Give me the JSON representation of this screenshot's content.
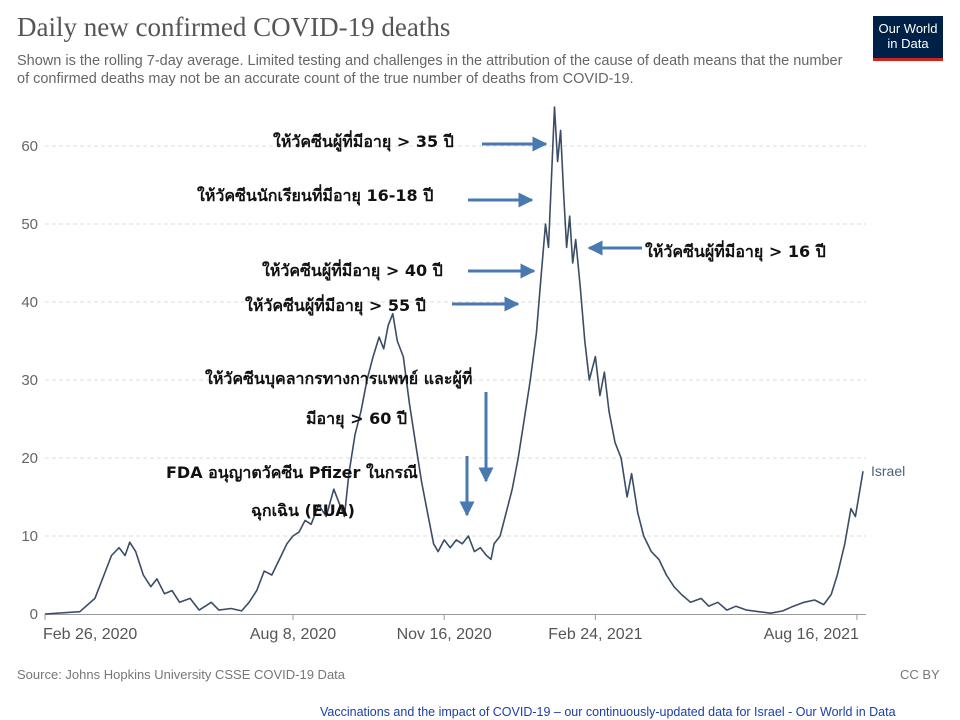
{
  "header": {
    "title": "Daily new confirmed COVID-19 deaths",
    "subtitle": "Shown is the rolling 7-day average. Limited testing and challenges in the attribution of the cause of death means that the number of confirmed deaths may not be an accurate count of the true number of deaths from COVID-19."
  },
  "logo": {
    "line1": "Our World",
    "line2": "in Data"
  },
  "colors": {
    "line": "#3b4d66",
    "arrow": "#4a78b0",
    "grid": "#dddddd",
    "logo_bg": "#002147",
    "logo_accent": "#ce261e"
  },
  "annotations": [
    "ให้วัคซีนผู้ที่มีอายุ > 35 ปี",
    "ให้วัคซีนนักเรียนที่มีอายุ 16-18 ปี",
    "ให้วัคซีนผู้ที่มีอายุ > 16 ปี",
    "ให้วัคซีนผู้ที่มีอายุ > 40 ปี",
    "ให้วัคซีนผู้ที่มีอายุ > 55 ปี",
    "ให้วัคซีนบุคลากรทางการแพทย์ และผู้ที่",
    "มีอายุ > 60 ปี",
    "FDA อนุญาตวัคซีน Pfizer ในกรณี",
    "ฉุกเฉิน (EUA)"
  ],
  "source": "Source: Johns Hopkins University CSSE COVID-19 Data",
  "license": "CC BY",
  "footer": "Vaccinations and the impact of COVID-19 – our continuously-updated data for Israel - Our World in Data",
  "chart_data": {
    "type": "line",
    "title": "Daily new confirmed COVID-19 deaths",
    "ylim": [
      0,
      65
    ],
    "yticks": [
      0,
      10,
      20,
      30,
      40,
      50,
      60
    ],
    "ytick_labels": [
      "0",
      "10",
      "20",
      "30",
      "40",
      "50",
      "60"
    ],
    "xticks": [
      "2020-02-26",
      "2020-08-08",
      "2020-11-16",
      "2021-02-24",
      "2021-08-16"
    ],
    "xtick_labels": [
      "Feb 26, 2020",
      "Aug 8, 2020",
      "Nov 16, 2020",
      "Feb 24, 2021",
      "Aug 16, 2021"
    ],
    "xlim": [
      "2020-02-26",
      "2021-08-22"
    ],
    "grid": true,
    "series": [
      {
        "name": "Israel",
        "points": [
          [
            "2020-02-26",
            0
          ],
          [
            "2020-03-20",
            0.3
          ],
          [
            "2020-03-30",
            2
          ],
          [
            "2020-04-05",
            5
          ],
          [
            "2020-04-10",
            7.5
          ],
          [
            "2020-04-15",
            8.5
          ],
          [
            "2020-04-19",
            7.5
          ],
          [
            "2020-04-22",
            9.2
          ],
          [
            "2020-04-26",
            8
          ],
          [
            "2020-05-01",
            5
          ],
          [
            "2020-05-06",
            3.5
          ],
          [
            "2020-05-10",
            4.5
          ],
          [
            "2020-05-15",
            2.6
          ],
          [
            "2020-05-20",
            3
          ],
          [
            "2020-05-25",
            1.5
          ],
          [
            "2020-06-01",
            2
          ],
          [
            "2020-06-07",
            0.5
          ],
          [
            "2020-06-15",
            1.5
          ],
          [
            "2020-06-20",
            0.5
          ],
          [
            "2020-06-28",
            0.7
          ],
          [
            "2020-07-05",
            0.4
          ],
          [
            "2020-07-10",
            1.5
          ],
          [
            "2020-07-15",
            3
          ],
          [
            "2020-07-20",
            5.5
          ],
          [
            "2020-07-25",
            5
          ],
          [
            "2020-07-30",
            7
          ],
          [
            "2020-08-04",
            9
          ],
          [
            "2020-08-08",
            10
          ],
          [
            "2020-08-12",
            10.5
          ],
          [
            "2020-08-16",
            12
          ],
          [
            "2020-08-20",
            11.5
          ],
          [
            "2020-08-25",
            14
          ],
          [
            "2020-08-30",
            12.5
          ],
          [
            "2020-09-04",
            16
          ],
          [
            "2020-09-08",
            14
          ],
          [
            "2020-09-11",
            12.5
          ],
          [
            "2020-09-14",
            18
          ],
          [
            "2020-09-18",
            23
          ],
          [
            "2020-09-22",
            26
          ],
          [
            "2020-09-26",
            30
          ],
          [
            "2020-09-30",
            33
          ],
          [
            "2020-10-04",
            35.5
          ],
          [
            "2020-10-07",
            34
          ],
          [
            "2020-10-10",
            37
          ],
          [
            "2020-10-13",
            38.5
          ],
          [
            "2020-10-16",
            35
          ],
          [
            "2020-10-20",
            33
          ],
          [
            "2020-10-24",
            27
          ],
          [
            "2020-10-28",
            22
          ],
          [
            "2020-11-01",
            17
          ],
          [
            "2020-11-05",
            13
          ],
          [
            "2020-11-09",
            9
          ],
          [
            "2020-11-12",
            8
          ],
          [
            "2020-11-16",
            9.5
          ],
          [
            "2020-11-20",
            8.5
          ],
          [
            "2020-11-24",
            9.5
          ],
          [
            "2020-11-28",
            9
          ],
          [
            "2020-12-02",
            10
          ],
          [
            "2020-12-06",
            8
          ],
          [
            "2020-12-10",
            8.5
          ],
          [
            "2020-12-14",
            7.5
          ],
          [
            "2020-12-17",
            7
          ],
          [
            "2020-12-19",
            9
          ],
          [
            "2020-12-23",
            10
          ],
          [
            "2020-12-27",
            13
          ],
          [
            "2020-12-31",
            16
          ],
          [
            "2021-01-04",
            20
          ],
          [
            "2021-01-08",
            25
          ],
          [
            "2021-01-12",
            30
          ],
          [
            "2021-01-16",
            36
          ],
          [
            "2021-01-19",
            43
          ],
          [
            "2021-01-22",
            50
          ],
          [
            "2021-01-24",
            47
          ],
          [
            "2021-01-26",
            56
          ],
          [
            "2021-01-28",
            65
          ],
          [
            "2021-01-30",
            58
          ],
          [
            "2021-02-01",
            62
          ],
          [
            "2021-02-03",
            54
          ],
          [
            "2021-02-05",
            47
          ],
          [
            "2021-02-07",
            51
          ],
          [
            "2021-02-09",
            45
          ],
          [
            "2021-02-11",
            48
          ],
          [
            "2021-02-14",
            42
          ],
          [
            "2021-02-17",
            35
          ],
          [
            "2021-02-20",
            30
          ],
          [
            "2021-02-24",
            33
          ],
          [
            "2021-02-27",
            28
          ],
          [
            "2021-03-02",
            31
          ],
          [
            "2021-03-05",
            26
          ],
          [
            "2021-03-09",
            22
          ],
          [
            "2021-03-13",
            20
          ],
          [
            "2021-03-17",
            15
          ],
          [
            "2021-03-20",
            18
          ],
          [
            "2021-03-24",
            13
          ],
          [
            "2021-03-28",
            10
          ],
          [
            "2021-04-02",
            8
          ],
          [
            "2021-04-07",
            7
          ],
          [
            "2021-04-12",
            5
          ],
          [
            "2021-04-17",
            3.5
          ],
          [
            "2021-04-22",
            2.5
          ],
          [
            "2021-04-28",
            1.5
          ],
          [
            "2021-05-05",
            2
          ],
          [
            "2021-05-10",
            1
          ],
          [
            "2021-05-16",
            1.5
          ],
          [
            "2021-05-22",
            0.5
          ],
          [
            "2021-05-28",
            1
          ],
          [
            "2021-06-04",
            0.5
          ],
          [
            "2021-06-12",
            0.3
          ],
          [
            "2021-06-20",
            0.1
          ],
          [
            "2021-06-28",
            0.4
          ],
          [
            "2021-07-05",
            1
          ],
          [
            "2021-07-12",
            1.5
          ],
          [
            "2021-07-19",
            1.8
          ],
          [
            "2021-07-25",
            1.2
          ],
          [
            "2021-07-30",
            2.5
          ],
          [
            "2021-08-03",
            5
          ],
          [
            "2021-08-08",
            9
          ],
          [
            "2021-08-12",
            13.5
          ],
          [
            "2021-08-15",
            12.5
          ],
          [
            "2021-08-18",
            16
          ],
          [
            "2021-08-20",
            18.3
          ]
        ]
      }
    ]
  }
}
